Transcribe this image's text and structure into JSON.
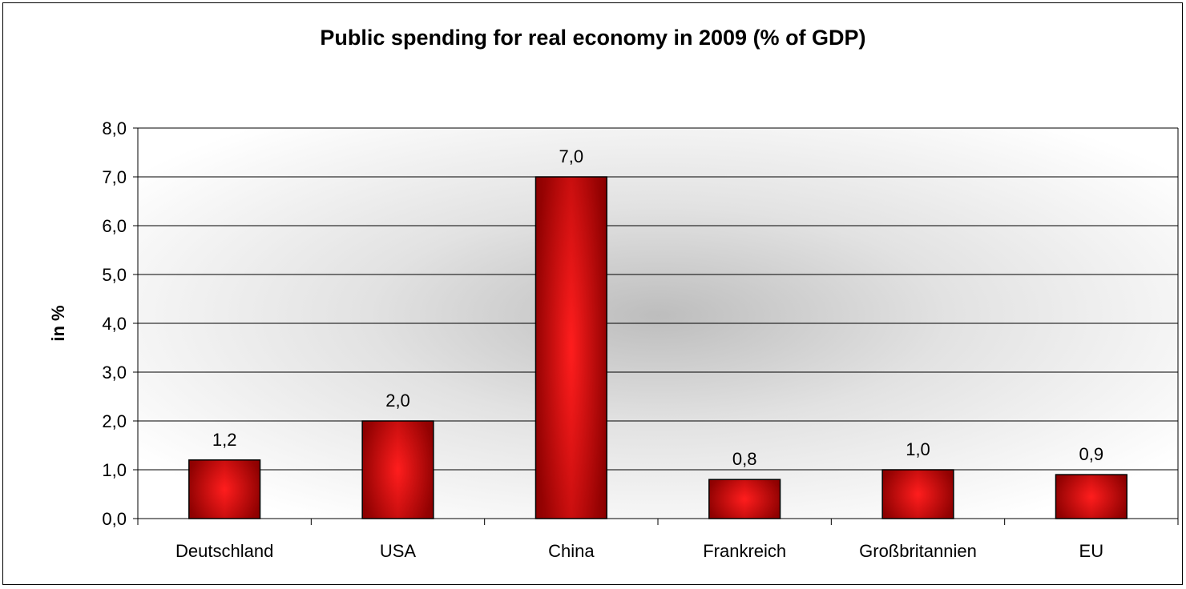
{
  "chart_data": {
    "type": "bar",
    "title": "Public spending for real economy in 2009 (% of GDP)",
    "xlabel": "",
    "ylabel": "in %",
    "categories": [
      "Deutschland",
      "USA",
      "China",
      "Frankreich",
      "Großbritannien",
      "EU"
    ],
    "values": [
      1.2,
      2.0,
      7.0,
      0.8,
      1.0,
      0.9
    ],
    "value_labels": [
      "1,2",
      "2,0",
      "7,0",
      "0,8",
      "1,0",
      "0,9"
    ],
    "ylim": [
      0,
      8
    ],
    "yticks": [
      0,
      1,
      2,
      3,
      4,
      5,
      6,
      7,
      8
    ],
    "ytick_labels": [
      "0,0",
      "1,0",
      "2,0",
      "3,0",
      "4,0",
      "5,0",
      "6,0",
      "7,0",
      "8,0"
    ],
    "grid": true,
    "legend": "none",
    "colors": {
      "bar_center": "#ff1a1a",
      "bar_edge": "#8b0000",
      "bar_outline": "#000000",
      "plot_glow": "#bdbdbd",
      "gridline": "#000000"
    }
  }
}
